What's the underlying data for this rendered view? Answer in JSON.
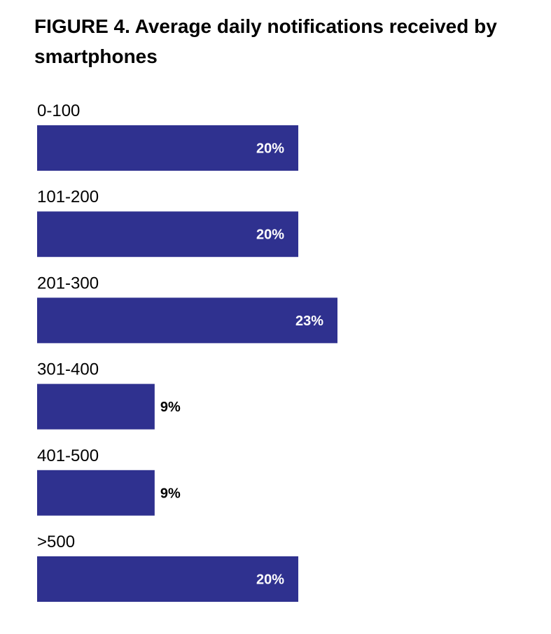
{
  "figure": {
    "title": "FIGURE 4. Average daily notifications received by smartphones"
  },
  "colors": {
    "bar": "#2f318f",
    "label_inside": "#ffffff",
    "label_outside": "#000000"
  },
  "chart_data": {
    "type": "bar",
    "orientation": "horizontal",
    "title": "FIGURE 4. Average daily notifications received by smartphones",
    "categories": [
      "0-100",
      "101-200",
      "201-300",
      "301-400",
      "401-500",
      ">500"
    ],
    "values": [
      20,
      20,
      23,
      9,
      9,
      20
    ],
    "value_labels": [
      "20%",
      "20%",
      "23%",
      "9%",
      "9%",
      "20%"
    ],
    "unit": "%",
    "xlim": [
      0,
      23
    ],
    "grid": false,
    "legend": "none"
  }
}
